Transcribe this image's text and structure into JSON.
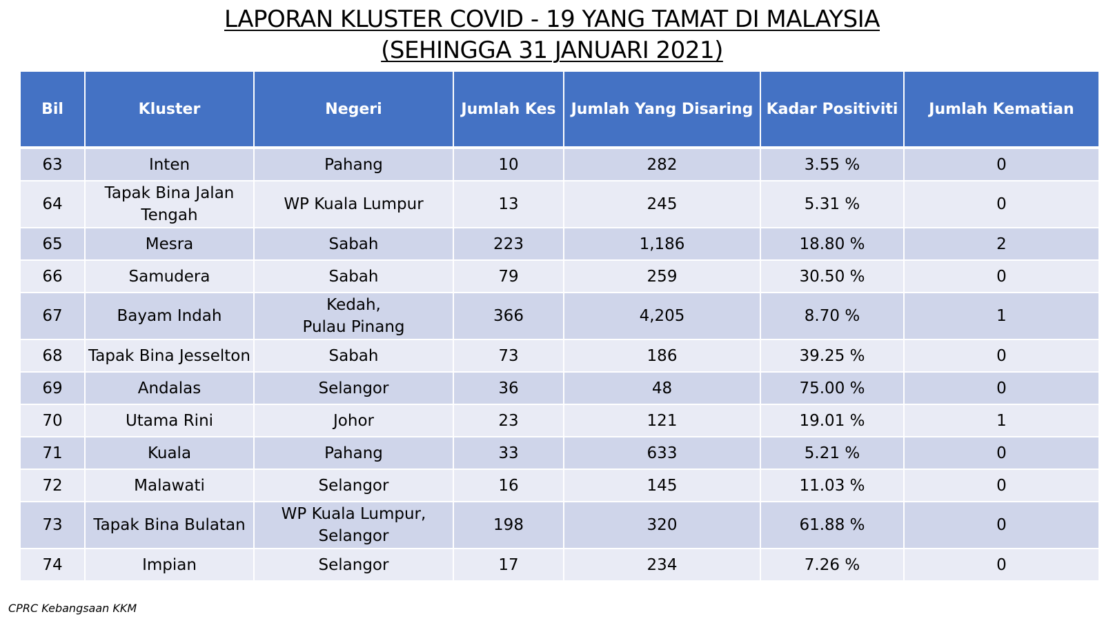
{
  "title_line1": "LAPORAN KLUSTER COVID - 19 YANG TAMAT DI MALAYSIA",
  "title_line2": "(SEHINGGA  31 JANUARI 2021)",
  "headers": {
    "bil": "Bil",
    "kluster": "Kluster",
    "negeri": "Negeri",
    "jumlah_kes": "Jumlah Kes",
    "jumlah_disaring": "Jumlah Yang Disaring",
    "kadar_positiviti": "Kadar Positiviti",
    "jumlah_kematian": "Jumlah Kematian"
  },
  "rows": [
    {
      "bil": "63",
      "kluster": "Inten",
      "negeri": "Pahang",
      "kes": "10",
      "disaring": "282",
      "positiviti": "3.55 %",
      "kematian": "0"
    },
    {
      "bil": "64",
      "kluster": "Tapak Bina Jalan Tengah",
      "negeri": "WP Kuala Lumpur",
      "kes": "13",
      "disaring": "245",
      "positiviti": "5.31 %",
      "kematian": "0"
    },
    {
      "bil": "65",
      "kluster": "Mesra",
      "negeri": "Sabah",
      "kes": "223",
      "disaring": "1,186",
      "positiviti": "18.80 %",
      "kematian": "2"
    },
    {
      "bil": "66",
      "kluster": "Samudera",
      "negeri": "Sabah",
      "kes": "79",
      "disaring": "259",
      "positiviti": "30.50 %",
      "kematian": "0"
    },
    {
      "bil": "67",
      "kluster": "Bayam Indah",
      "negeri": "Kedah,\nPulau Pinang",
      "kes": "366",
      "disaring": "4,205",
      "positiviti": "8.70 %",
      "kematian": "1"
    },
    {
      "bil": "68",
      "kluster": "Tapak Bina Jesselton",
      "negeri": "Sabah",
      "kes": "73",
      "disaring": "186",
      "positiviti": "39.25 %",
      "kematian": "0"
    },
    {
      "bil": "69",
      "kluster": "Andalas",
      "negeri": "Selangor",
      "kes": "36",
      "disaring": "48",
      "positiviti": "75.00 %",
      "kematian": "0"
    },
    {
      "bil": "70",
      "kluster": "Utama Rini",
      "negeri": "Johor",
      "kes": "23",
      "disaring": "121",
      "positiviti": "19.01 %",
      "kematian": "1"
    },
    {
      "bil": "71",
      "kluster": "Kuala",
      "negeri": "Pahang",
      "kes": "33",
      "disaring": "633",
      "positiviti": "5.21 %",
      "kematian": "0"
    },
    {
      "bil": "72",
      "kluster": "Malawati",
      "negeri": "Selangor",
      "kes": "16",
      "disaring": "145",
      "positiviti": "11.03 %",
      "kematian": "0"
    },
    {
      "bil": "73",
      "kluster": "Tapak Bina Bulatan",
      "negeri": "WP Kuala Lumpur,\nSelangor",
      "kes": "198",
      "disaring": "320",
      "positiviti": "61.88 %",
      "kematian": "0"
    },
    {
      "bil": "74",
      "kluster": "Impian",
      "negeri": "Selangor",
      "kes": "17",
      "disaring": "234",
      "positiviti": "7.26 %",
      "kematian": "0"
    }
  ],
  "source": "CPRC Kebangsaan KKM"
}
